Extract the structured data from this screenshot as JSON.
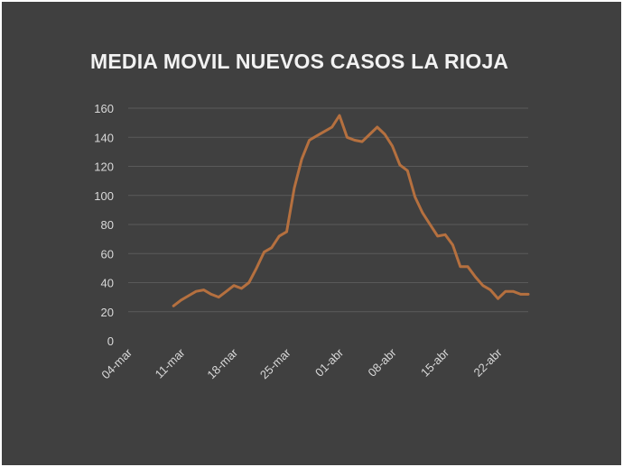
{
  "chart_data": {
    "type": "line",
    "title": "MEDIA MOVIL NUEVOS CASOS LA RIOJA",
    "xlabel": "",
    "ylabel": "",
    "ylim": [
      0,
      160
    ],
    "yticks": [
      0,
      20,
      40,
      60,
      80,
      100,
      120,
      140,
      160
    ],
    "xticks": [
      "04-mar",
      "11-mar",
      "18-mar",
      "25-mar",
      "01-abr",
      "08-abr",
      "15-abr",
      "22-abr"
    ],
    "grid": true,
    "legend": "none",
    "colors": {
      "background": "#404040",
      "line": "#b5703f",
      "grid": "#5a5a5a",
      "text": "#d9d9d9"
    },
    "series": [
      {
        "x": [
          "10-mar",
          "11-mar",
          "12-mar",
          "13-mar",
          "14-mar",
          "15-mar",
          "16-mar",
          "17-mar",
          "18-mar",
          "19-mar",
          "20-mar",
          "21-mar",
          "22-mar",
          "23-mar",
          "24-mar",
          "25-mar",
          "26-mar",
          "27-mar",
          "28-mar",
          "29-mar",
          "30-mar",
          "31-mar",
          "01-abr",
          "02-abr",
          "03-abr",
          "04-abr",
          "05-abr",
          "06-abr",
          "07-abr",
          "08-abr",
          "09-abr",
          "10-abr",
          "11-abr",
          "12-abr",
          "13-abr",
          "14-abr",
          "15-abr",
          "16-abr",
          "17-abr",
          "18-abr",
          "19-abr",
          "20-abr",
          "21-abr",
          "22-abr",
          "23-abr",
          "24-abr",
          "25-abr",
          "26-abr"
        ],
        "values": [
          24,
          28,
          31,
          34,
          35,
          32,
          30,
          34,
          38,
          36,
          40,
          50,
          61,
          64,
          72,
          75,
          105,
          125,
          138,
          141,
          144,
          147,
          155,
          140,
          138,
          137,
          142,
          147,
          142,
          134,
          121,
          117,
          99,
          88,
          80,
          72,
          73,
          66,
          51,
          51,
          44,
          38,
          35,
          29,
          34,
          34,
          32,
          32
        ]
      }
    ]
  }
}
